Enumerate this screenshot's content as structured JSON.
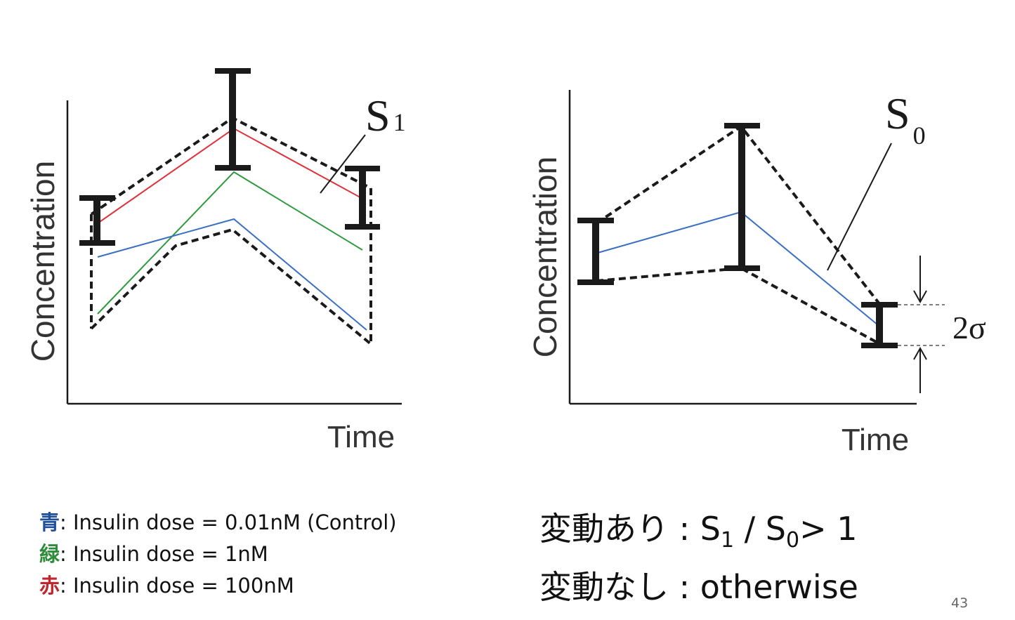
{
  "left_panel": {
    "ylabel": "Concentration",
    "xlabel": "Time",
    "label_main": "S",
    "label_sub": "1"
  },
  "right_panel": {
    "ylabel": "Concentration",
    "xlabel": "Time",
    "label_main": "S",
    "label_sub": "0",
    "sigma_label": "2σ"
  },
  "colors": {
    "blue": "#3a6fc2",
    "green": "#2e9a3e",
    "red": "#e0323c",
    "black": "#1a1a1a"
  },
  "legend": [
    {
      "key": "青",
      "color": "#1f4f9a",
      "text": ": Insulin dose = 0.01nM (Control)"
    },
    {
      "key": "緑",
      "color": "#2e8b3a",
      "text": ": Insulin dose = 1nM"
    },
    {
      "key": "赤",
      "color": "#c0262e",
      "text": ": Insulin dose = 100nM"
    }
  ],
  "rule": {
    "line1_prefix": "変動あり : S",
    "line1_sub1": "1",
    "line1_mid": " / S",
    "line1_sub2": "0",
    "line1_suffix": "> 1",
    "line2": "変動なし : otherwise"
  },
  "page_number": "43"
}
